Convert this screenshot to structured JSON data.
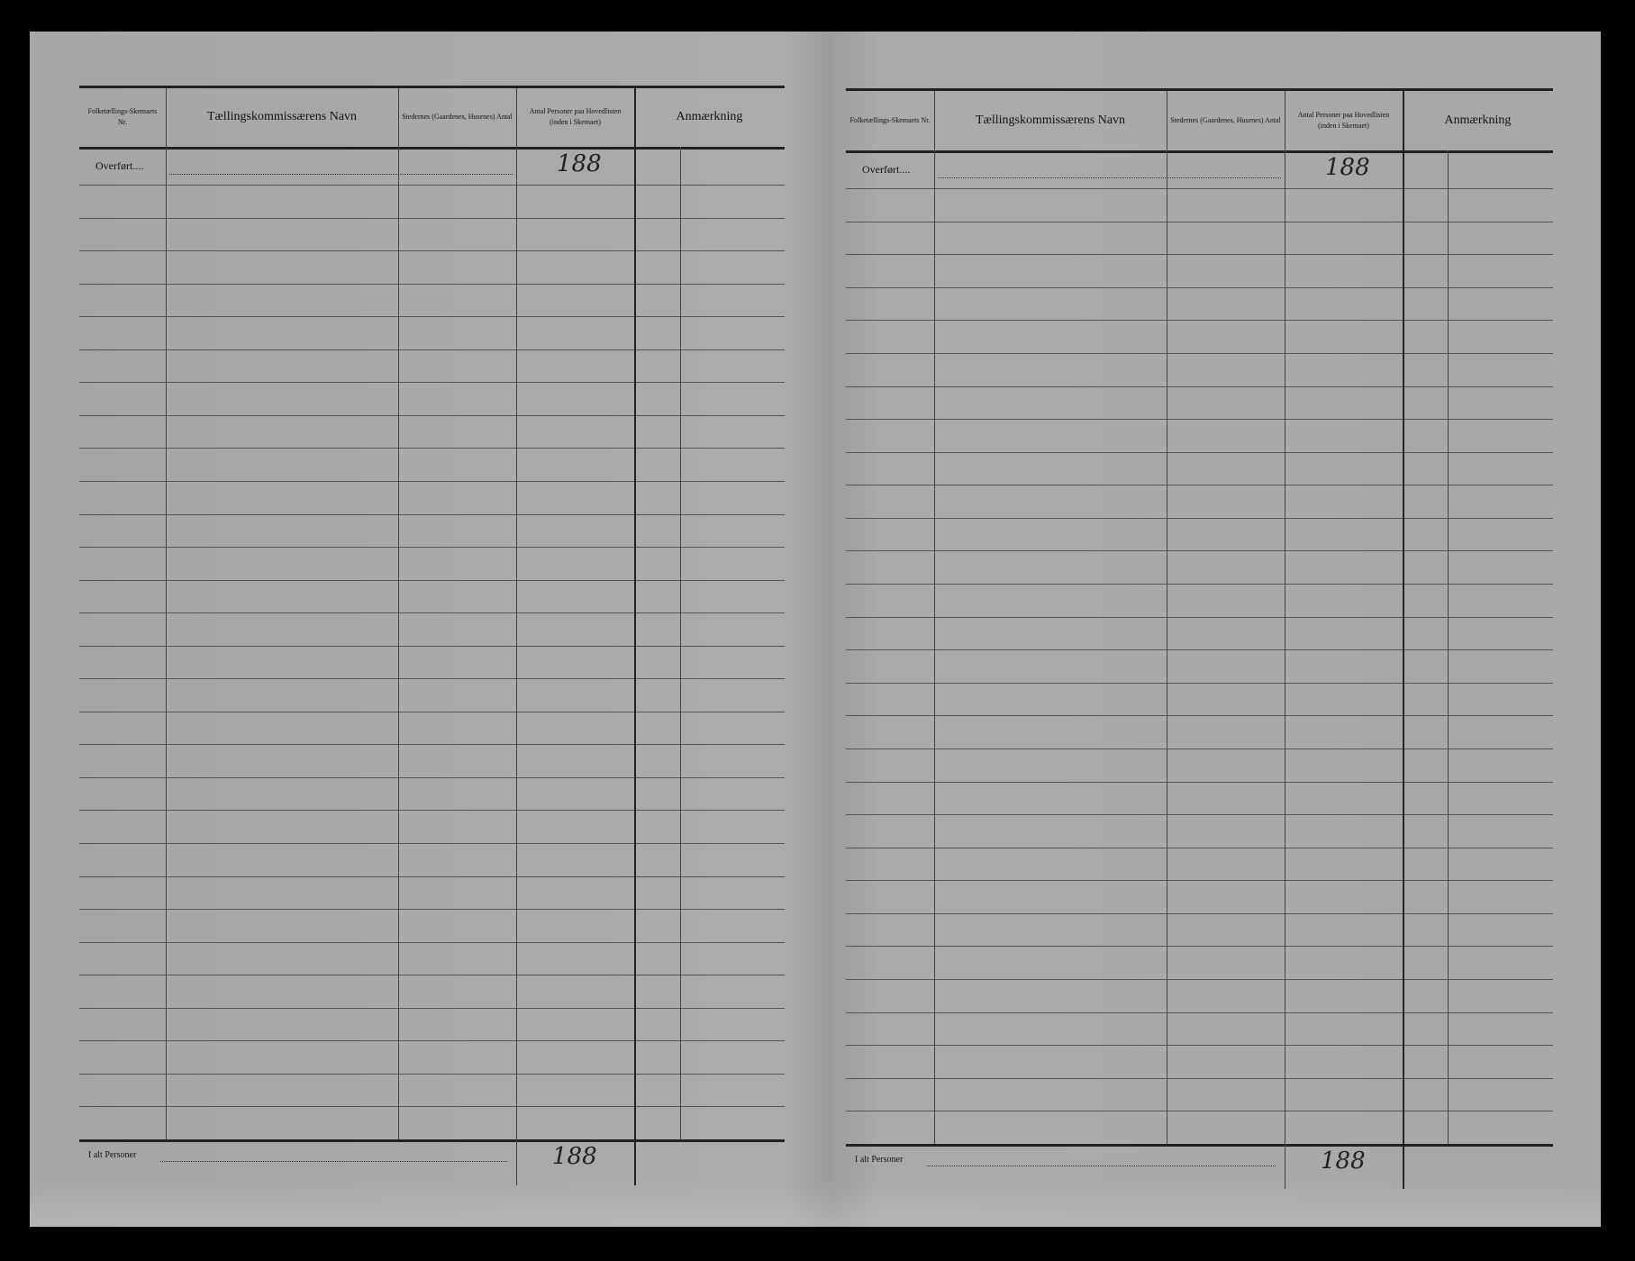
{
  "pages": [
    {
      "headers": {
        "col1": "Folketællings-Skemaets Nr.",
        "col2": "Tællingskommissærens Navn",
        "col3": "Stedernes (Gaardenes, Husenes) Antal",
        "col4": "Antal Personer paa Hovedlisten (inden i Skemaet)",
        "col5": "Anmærkning"
      },
      "carried_label": "Overført....",
      "carried_value": "188",
      "total_label": "I alt Personer",
      "total_value": "188"
    },
    {
      "headers": {
        "col1": "Folketællings-Skemaets Nr.",
        "col2": "Tællingskommissærens Navn",
        "col3": "Stedernes (Gaardenes, Husenes) Antal",
        "col4": "Antal Personer paa Hovedlisten (inden i Skemaet)",
        "col5": "Anmærkning"
      },
      "carried_label": "Overført....",
      "carried_value": "188",
      "total_label": "I alt Personer",
      "total_value": "188"
    }
  ]
}
